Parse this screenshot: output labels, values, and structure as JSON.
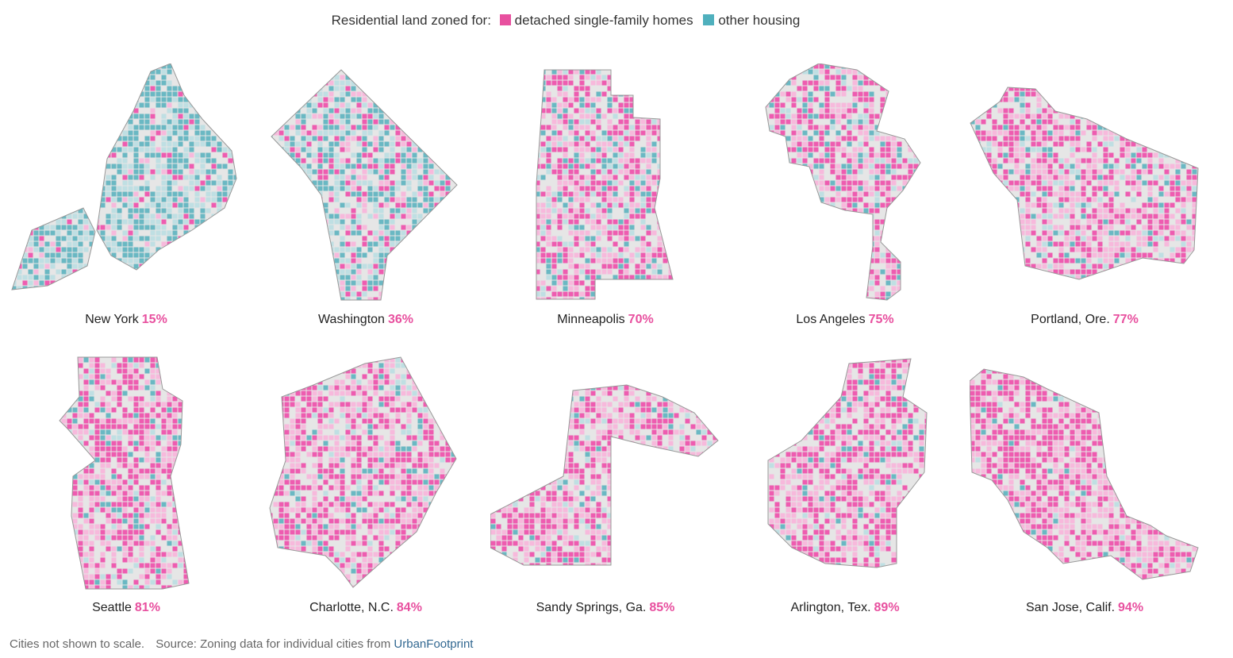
{
  "legend": {
    "lead": "Residential land zoned for:",
    "items": [
      {
        "label": "detached single-family homes",
        "color": "#e8509f"
      },
      {
        "label": "other housing",
        "color": "#4fb0bd"
      }
    ]
  },
  "colors": {
    "single_family": "#ee5cb0",
    "single_family_light": "#f7b9dc",
    "other": "#6ab8c3",
    "other_light": "#bfdfe3",
    "nonresidential": "#e6e6e6",
    "outline": "#999999",
    "percent": "#e8509f"
  },
  "chart_data": {
    "type": "map",
    "measure": "share of residential land zoned for detached single-family homes",
    "cities": [
      {
        "name": "New York",
        "percent_label": "15%",
        "value": 15
      },
      {
        "name": "Washington",
        "percent_label": "36%",
        "value": 36
      },
      {
        "name": "Minneapolis",
        "percent_label": "70%",
        "value": 70
      },
      {
        "name": "Los Angeles",
        "percent_label": "75%",
        "value": 75
      },
      {
        "name": "Portland, Ore.",
        "percent_label": "77%",
        "value": 77
      },
      {
        "name": "Seattle",
        "percent_label": "81%",
        "value": 81
      },
      {
        "name": "Charlotte, N.C.",
        "percent_label": "84%",
        "value": 84
      },
      {
        "name": "Sandy Springs, Ga.",
        "percent_label": "85%",
        "value": 85
      },
      {
        "name": "Arlington, Tex.",
        "percent_label": "89%",
        "value": 89
      },
      {
        "name": "San Jose, Calif.",
        "percent_label": "94%",
        "value": 94
      }
    ]
  },
  "footer": {
    "note": "Cities not shown to scale.",
    "source_prefix": "Source: Zoning data for individual cities from",
    "source_link": "UrbanFootprint"
  }
}
